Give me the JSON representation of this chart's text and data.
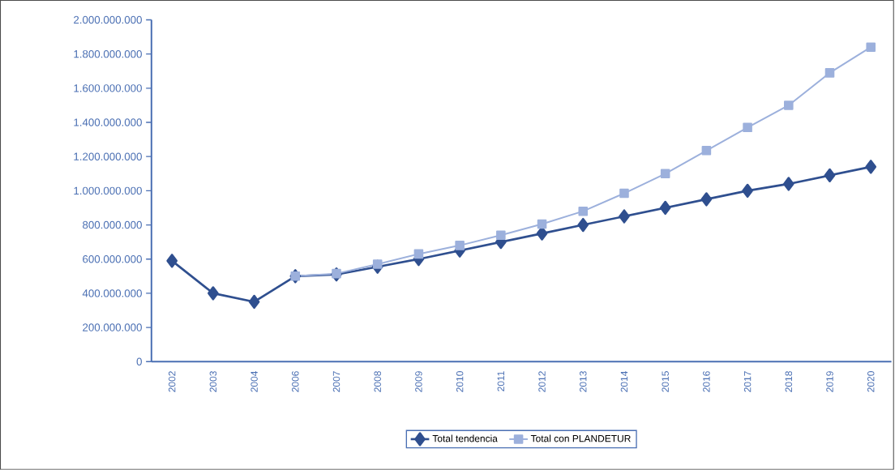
{
  "chart_data": {
    "type": "line",
    "categories": [
      "2002",
      "2003",
      "2004",
      "2006",
      "2007",
      "2008",
      "2009",
      "2010",
      "2011",
      "2012",
      "2013",
      "2014",
      "2015",
      "2016",
      "2017",
      "2018",
      "2019",
      "2020"
    ],
    "series": [
      {
        "name": "Total tendencia",
        "color": "#2f4f8f",
        "marker": "diamond",
        "values": [
          590000000,
          400000000,
          350000000,
          500000000,
          510000000,
          555000000,
          600000000,
          650000000,
          700000000,
          750000000,
          800000000,
          850000000,
          900000000,
          950000000,
          1000000000,
          1040000000,
          1090000000,
          1140000000
        ]
      },
      {
        "name": "Total con PLANDETUR",
        "color": "#9cb0dc",
        "marker": "square",
        "values": [
          null,
          null,
          null,
          500000000,
          515000000,
          570000000,
          630000000,
          680000000,
          740000000,
          805000000,
          880000000,
          985000000,
          1100000000,
          1235000000,
          1370000000,
          1500000000,
          1690000000,
          1840000000
        ]
      }
    ],
    "ylim": [
      0,
      2000000000
    ],
    "yticks": [
      0,
      {
        "value": 200000000,
        "label": "200.000.000"
      },
      {
        "value": 400000000,
        "label": "400.000.000"
      },
      {
        "value": 600000000,
        "label": "600.000.000"
      },
      {
        "value": 800000000,
        "label": "800.000.000"
      },
      {
        "value": 1000000000,
        "label": "1.000.000.000"
      },
      {
        "value": 1200000000,
        "label": "1.200.000.000"
      },
      {
        "value": 1400000000,
        "label": "1.400.000.000"
      },
      {
        "value": 1600000000,
        "label": "1.600.000.000"
      },
      {
        "value": 1800000000,
        "label": "1.800.000.000"
      },
      {
        "value": 2000000000,
        "label": "2.000.000.000"
      }
    ],
    "grid": false,
    "legend": "bottom"
  }
}
